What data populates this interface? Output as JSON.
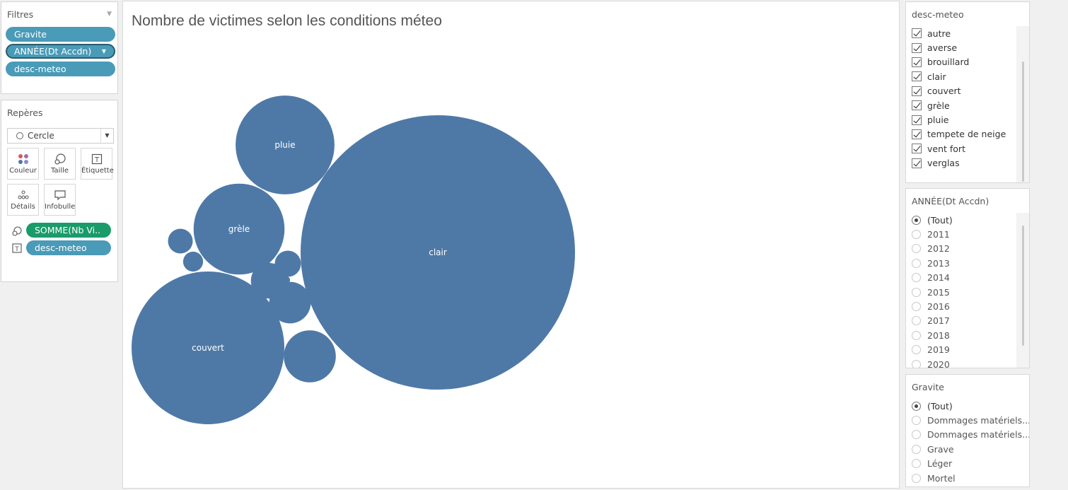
{
  "filters": {
    "title": "Filtres",
    "pills": [
      {
        "label": "Gravite"
      },
      {
        "label": "ANNÉE(Dt Accdn)"
      },
      {
        "label": "desc-meteo"
      }
    ]
  },
  "marks": {
    "title": "Repères",
    "mark_type": "Cercle",
    "buttons": [
      {
        "label": "Couleur",
        "icon": "color-dots-icon"
      },
      {
        "label": "Taille",
        "icon": "size-icon"
      },
      {
        "label": "Étiquette",
        "icon": "label-icon"
      },
      {
        "label": "Détails",
        "icon": "details-icon"
      },
      {
        "label": "Infobulle",
        "icon": "tooltip-icon"
      }
    ],
    "shelf": [
      {
        "label": "SOMME(Nb Vi..",
        "icon": "size-icon",
        "color": "#1a9b6a"
      },
      {
        "label": "desc-meteo",
        "icon": "label-icon",
        "color": "#4a9bb7"
      }
    ]
  },
  "chart": {
    "title": "Nombre de victimes selon les conditions méteo",
    "bubble_color": "#4e79a7"
  },
  "chart_data": {
    "type": "bubble",
    "measure": "SOMME(Nb Victimes)",
    "dimension": "desc-meteo",
    "labeled_bubbles": [
      "clair",
      "couvert",
      "pluie",
      "grèle"
    ],
    "bubbles": [
      {
        "label": "clair",
        "relative_size": 1.0
      },
      {
        "label": "couvert",
        "relative_size": 0.31
      },
      {
        "label": "pluie",
        "relative_size": 0.13
      },
      {
        "label": "grèle",
        "relative_size": 0.11
      },
      {
        "label": "",
        "relative_size": 0.036
      },
      {
        "label": "",
        "relative_size": 0.023
      },
      {
        "label": "",
        "relative_size": 0.017
      },
      {
        "label": "",
        "relative_size": 0.0091
      },
      {
        "label": "",
        "relative_size": 0.0081
      },
      {
        "label": "",
        "relative_size": 0.0053
      },
      {
        "label": "",
        "relative_size": 0.0007
      }
    ]
  },
  "desc_meteo_filter": {
    "title": "desc-meteo",
    "items": [
      "autre",
      "averse",
      "brouillard",
      "clair",
      "couvert",
      "grèle",
      "pluie",
      "tempete de neige",
      "vent fort",
      "verglas"
    ]
  },
  "annee_filter": {
    "title": "ANNÉE(Dt Accdn)",
    "selected": "(Tout)",
    "items": [
      "(Tout)",
      "2011",
      "2012",
      "2013",
      "2014",
      "2015",
      "2016",
      "2017",
      "2018",
      "2019",
      "2020"
    ]
  },
  "gravite_filter": {
    "title": "Gravite",
    "selected": "(Tout)",
    "items": [
      "(Tout)",
      "Dommages matériels...",
      "Dommages matériels...",
      "Grave",
      "Léger",
      "Mortel"
    ]
  }
}
